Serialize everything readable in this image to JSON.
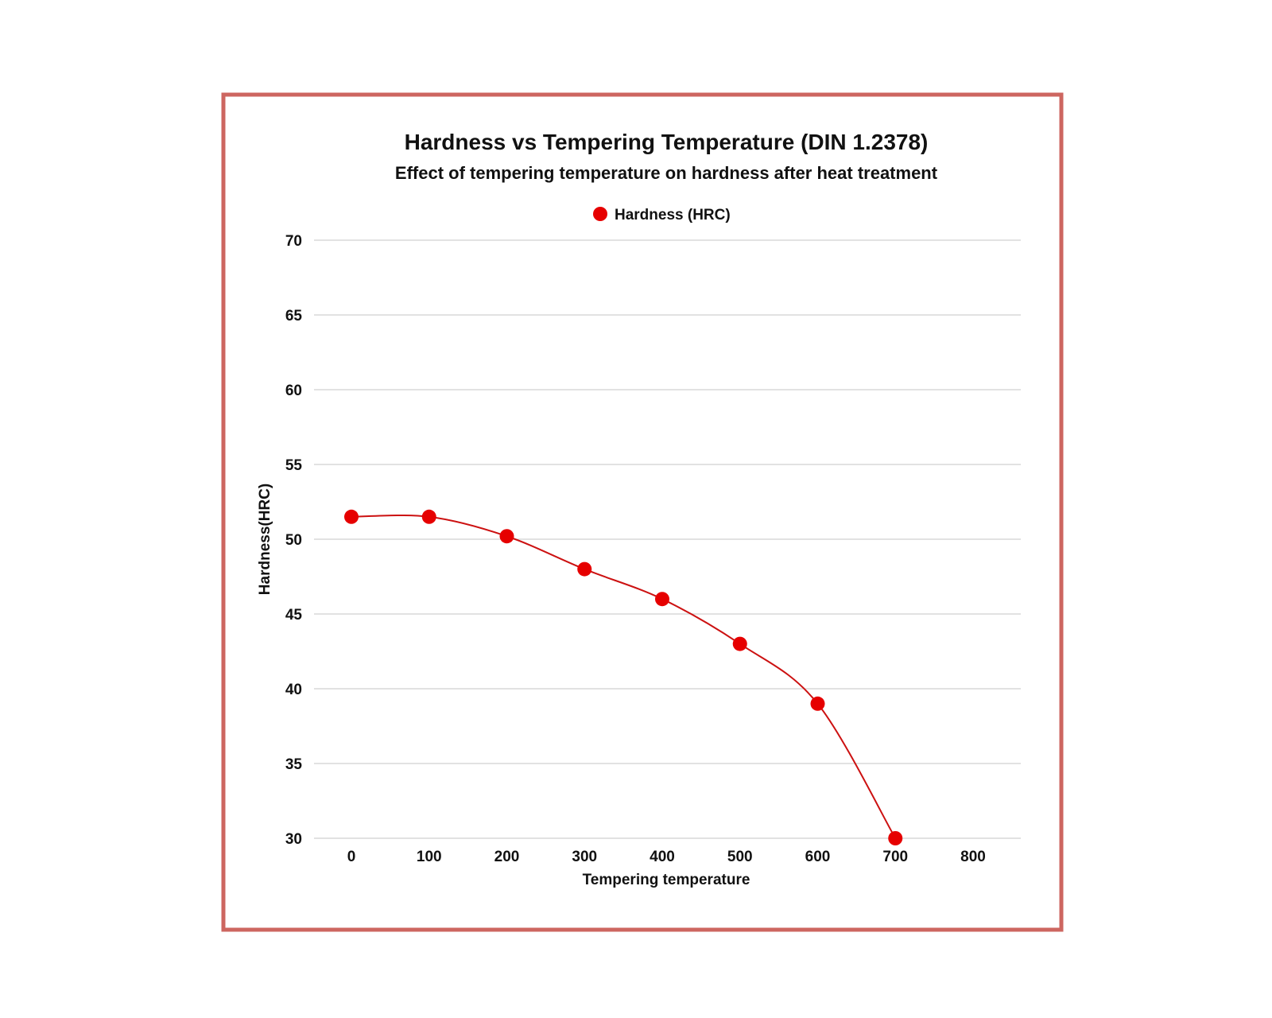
{
  "chart_data": {
    "type": "line",
    "title": "Hardness vs Tempering Temperature (DIN 1.2378)",
    "subtitle": "Effect of tempering temperature on hardness after heat treatment",
    "xlabel": "Tempering temperature",
    "ylabel": "Hardness(HRC)",
    "xlim": [
      -50,
      850
    ],
    "ylim": [
      30,
      70
    ],
    "x_ticks": [
      "0",
      "100",
      "200",
      "300",
      "400",
      "500",
      "600",
      "700",
      "800"
    ],
    "y_ticks": [
      "70",
      "65",
      "60",
      "55",
      "50",
      "45",
      "40",
      "35",
      "30"
    ],
    "grid": "horizontal",
    "legend": "top-center",
    "smooth": true,
    "series": [
      {
        "name": "Hardness (HRC)",
        "color": "#e60000",
        "x": [
          0,
          100,
          200,
          300,
          400,
          500,
          600,
          700
        ],
        "values": [
          51.5,
          51.5,
          50.2,
          48,
          46,
          43,
          39,
          30
        ]
      }
    ]
  },
  "colors": {
    "frame": "#cd6660",
    "line": "#cc1111",
    "grid": "#d0d0d0"
  }
}
